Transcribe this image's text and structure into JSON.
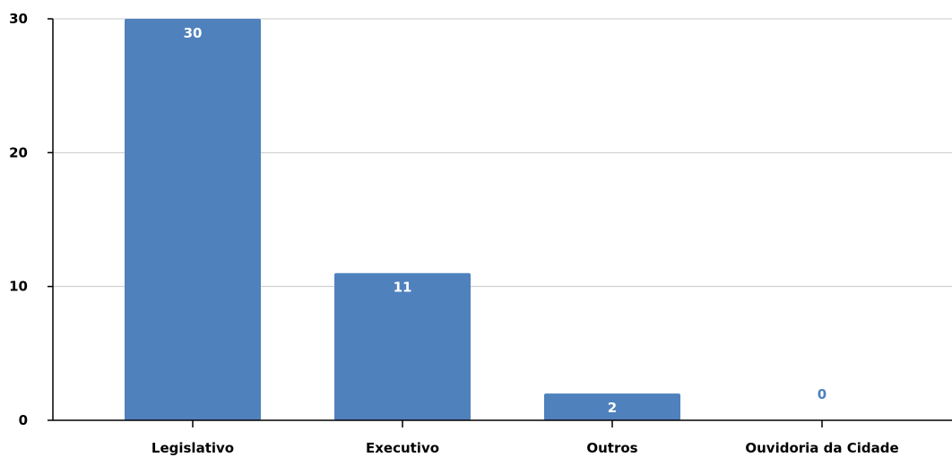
{
  "chart_data": {
    "type": "bar",
    "title": "",
    "xlabel": "",
    "ylabel": "",
    "categories": [
      "Legislativo",
      "Executivo",
      "Outros",
      "Ouvidoria da Cidade"
    ],
    "values": [
      30,
      11,
      2,
      0
    ],
    "data_labels": [
      "30",
      "11",
      "2",
      "0"
    ],
    "y_ticks": [
      {
        "value": 0,
        "label": "0"
      },
      {
        "value": 10,
        "label": "10"
      },
      {
        "value": 20,
        "label": "20"
      },
      {
        "value": 30,
        "label": "30"
      }
    ],
    "ylim": [
      0,
      30
    ],
    "grid": true,
    "legend": "none",
    "colors": {
      "bar": "#4f81bd",
      "label_inside": "#ffffff",
      "label_outside": "#4f81bd",
      "grid": "#c8c8c8",
      "axis": "#000000"
    }
  }
}
